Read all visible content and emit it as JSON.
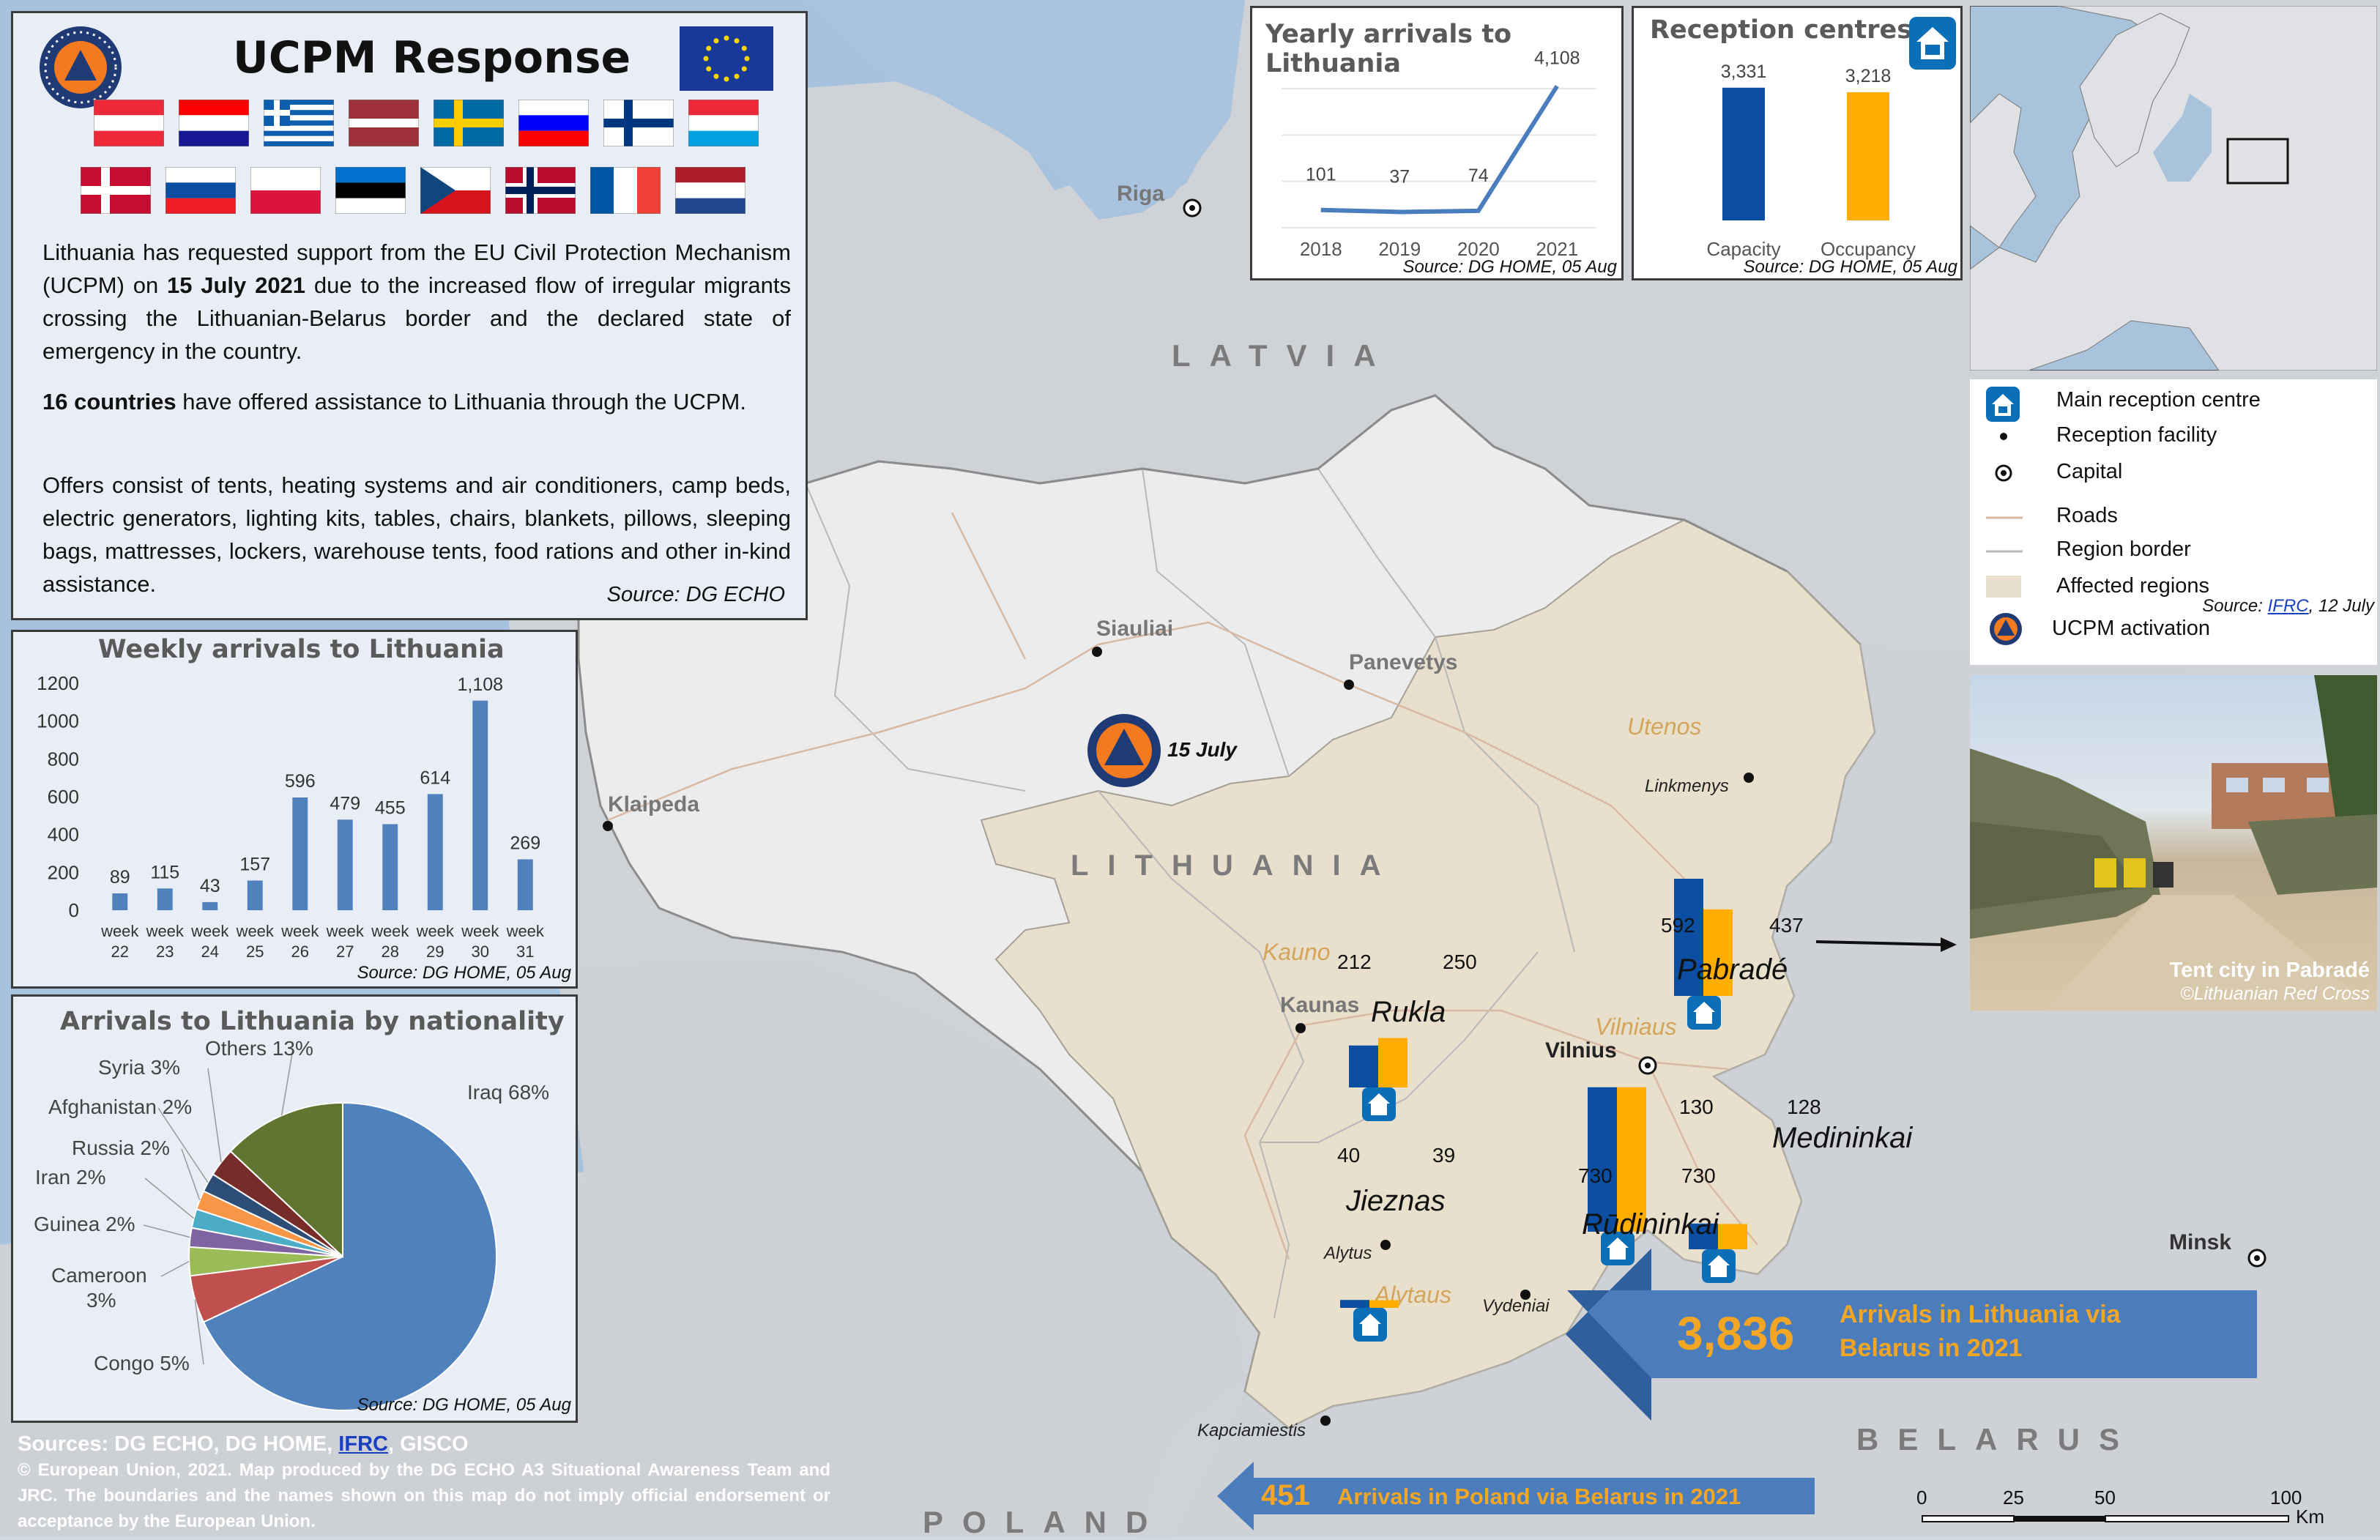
{
  "header": {
    "title": "UCPM Response"
  },
  "intro": {
    "p1_pre": "Lithuania has requested support from the EU Civil Protection Mechanism (UCPM) on ",
    "p1_bold": "15 July 2021",
    "p1_post": " due to the increased flow of irregular migrants crossing the Lithuanian-Belarus border and the declared state of emergency in the country.",
    "p2_bold": "16 countries",
    "p2_post": " have offered assistance to Lithuania through the UCPM.",
    "p3": "Offers consist of tents, heating systems and air conditioners, camp beds, electric generators, lighting kits, tables, chairs, blankets, pillows, sleeping bags, mattresses, lockers, warehouse tents, food rations and other in-kind assistance.",
    "source": "Source: DG ECHO"
  },
  "flags": [
    "Austria",
    "Croatia",
    "Greece",
    "Latvia",
    "Sweden",
    "Slovenia",
    "Finland",
    "Luxembourg",
    "Denmark",
    "Slovakia",
    "Poland",
    "Estonia",
    "Czechia",
    "Norway",
    "France",
    "Netherlands"
  ],
  "yearly": {
    "title": "Yearly arrivals to Lithuania",
    "source": "Source: DG HOME, 05 Aug",
    "chart_data": {
      "type": "line",
      "categories": [
        "2018",
        "2019",
        "2020",
        "2021"
      ],
      "values": [
        101,
        37,
        74,
        4108
      ],
      "labels": [
        "101",
        "37",
        "74",
        "4,108"
      ],
      "ylim": [
        0,
        4500
      ]
    }
  },
  "reception": {
    "title": "Reception centres",
    "source": "Source: DG HOME, 05 Aug",
    "chart_data": {
      "type": "bar",
      "categories": [
        "Capacity",
        "Occupancy"
      ],
      "values": [
        3331,
        3218
      ],
      "labels": [
        "3,331",
        "3,218"
      ],
      "colors": [
        "#0b4ea2",
        "#ffad00"
      ]
    }
  },
  "weekly": {
    "title": "Weekly arrivals to Lithuania",
    "source": "Source: DG HOME, 05 Aug",
    "chart_data": {
      "type": "bar",
      "categories": [
        "22",
        "23",
        "24",
        "25",
        "26",
        "27",
        "28",
        "29",
        "30",
        "31"
      ],
      "values": [
        89,
        115,
        43,
        157,
        596,
        479,
        455,
        614,
        1108,
        269
      ],
      "labels": [
        "89",
        "115",
        "43",
        "157",
        "596",
        "479",
        "455",
        "614",
        "1,108",
        "269"
      ],
      "yticks": [
        "0",
        "200",
        "400",
        "600",
        "800",
        "1000",
        "1200"
      ],
      "ylim": [
        0,
        1200
      ],
      "xprefix": "week",
      "color": "#4f81bd"
    }
  },
  "nationality": {
    "title": "Arrivals to Lithuania by nationality",
    "source": "Source: DG HOME, 05 Aug",
    "chart_data": {
      "type": "pie",
      "slices": [
        {
          "label": "Iraq 68%",
          "value": 68,
          "color": "#4f81bd"
        },
        {
          "label": "Congo 5%",
          "value": 5,
          "color": "#c0504d"
        },
        {
          "label": "Cameroon 3%",
          "value": 3,
          "color": "#9bbb59"
        },
        {
          "label": "Guinea 2%",
          "value": 2,
          "color": "#8064a2"
        },
        {
          "label": "Iran 2%",
          "value": 2,
          "color": "#4bacc6"
        },
        {
          "label": "Russia 2%",
          "value": 2,
          "color": "#f79646"
        },
        {
          "label": "Afghanistan 2%",
          "value": 2,
          "color": "#2c4d75"
        },
        {
          "label": "Syria 3%",
          "value": 3,
          "color": "#772c2a"
        },
        {
          "label": "Others 13%",
          "value": 13,
          "color": "#5f7530"
        }
      ]
    }
  },
  "legend": {
    "items": [
      "Main reception centre",
      "Reception facility",
      "Capital",
      "Roads",
      "Region border",
      "Affected regions",
      "UCPM activation"
    ],
    "source_pre": "Source: ",
    "source_link": "IFRC",
    "source_post": ", 12 July"
  },
  "photo": {
    "caption": "Tent city in Pabradé",
    "credit": "©Lithuanian Red Cross"
  },
  "map": {
    "countries": {
      "latvia": "LATVIA",
      "lithuania": "LITHUANIA",
      "belarus": "BELARUS",
      "poland": "POLAND"
    },
    "cities": {
      "riga": "Riga",
      "siauliai": "Siauliai",
      "panevetys": "Panevetys",
      "klaipeda": "Klaipeda",
      "kaunas": "Kaunas",
      "vilnius": "Vilnius",
      "minsk": "Minsk",
      "linkmenys": "Linkmenys",
      "alytus": "Alytus",
      "vydeniai": "Vydeniai",
      "kapciamiestis": "Kapciamiestis"
    },
    "regions": {
      "utenos": "Utenos",
      "kauno": "Kauno",
      "vilniaus": "Vilniaus",
      "alytaus": "Alytaus"
    },
    "activation": "15 July",
    "centres": [
      {
        "name": "Pabradé",
        "capacity": 592,
        "occupancy": 437
      },
      {
        "name": "Rukla",
        "capacity": 212,
        "occupancy": 250
      },
      {
        "name": "Medininkai",
        "capacity": 130,
        "occupancy": 128
      },
      {
        "name": "Rūdininkai",
        "capacity": 730,
        "occupancy": 730
      },
      {
        "name": "Jieznas",
        "capacity": 40,
        "occupancy": 39
      }
    ]
  },
  "arrivals_lt": {
    "value": "3,836",
    "text": "Arrivals in Lithuania via Belarus in 2021"
  },
  "arrivals_pl": {
    "value": "451",
    "text": "Arrivals in Poland via Belarus in 2021"
  },
  "footer": {
    "sources_pre": "Sources: DG ECHO, DG HOME, ",
    "sources_link": "IFRC",
    "sources_post": ", GISCO",
    "copyright": "© European Union, 2021. Map produced by the DG ECHO A3 Situational Awareness Team and JRC. The boundaries and the names shown on this map do not imply official endorsement or acceptance by the European Union."
  },
  "scale": {
    "ticks": [
      "0",
      "25",
      "50",
      "100"
    ],
    "unit": "Km"
  }
}
